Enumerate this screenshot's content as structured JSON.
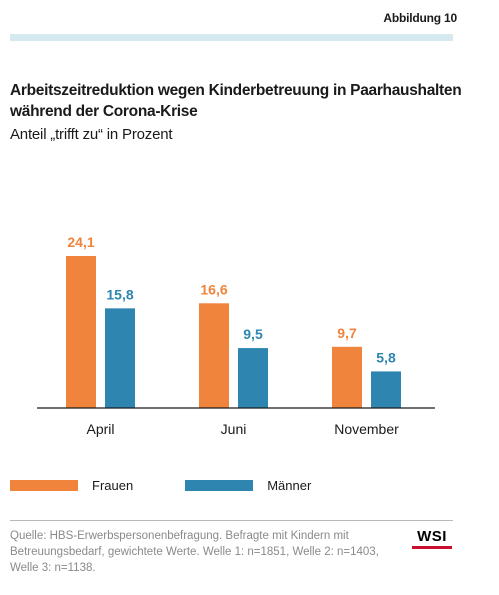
{
  "figure_label": "Abbildung 10",
  "colors": {
    "frauen": "#f0843c",
    "maenner": "#2e86b0",
    "label_frauen": "#f0843c",
    "label_maenner": "#2e86b0",
    "accent_bar": "#d6e9ef",
    "logo_red": "#c8102e"
  },
  "chart_data": {
    "type": "bar",
    "title": "Arbeitszeitreduktion wegen Kinderbetreuung in Paarhaushalten während der Corona-Krise",
    "subtitle": "Anteil „trifft zu“ in Prozent",
    "categories": [
      "April",
      "Juni",
      "November"
    ],
    "series": [
      {
        "name": "Frauen",
        "values": [
          24.1,
          16.6,
          9.7
        ],
        "labels": [
          "24,1",
          "16,6",
          "9,7"
        ]
      },
      {
        "name": "Männer",
        "values": [
          15.8,
          9.5,
          5.8
        ],
        "labels": [
          "15,8",
          "9,5",
          "5,8"
        ]
      }
    ],
    "xlabel": "",
    "ylabel": "",
    "ylim": [
      0,
      24.1
    ],
    "grid": false,
    "legend_position": "bottom-left"
  },
  "source": {
    "text": "Quelle: HBS-Erwerbspersonenbefragung. Befragte mit Kindern mit Betreuungsbedarf, gewichtete Werte. Welle 1: n=1851, Welle 2: n=1403, Welle 3: n=1138.",
    "logo_text": "WSI"
  }
}
